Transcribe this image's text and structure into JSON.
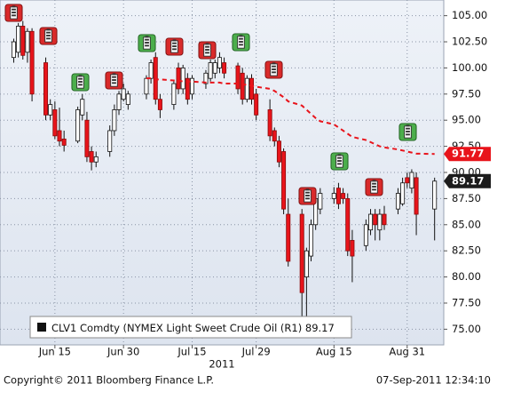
{
  "chart_data": {
    "type": "candlestick",
    "x": [
      "2011-06-06",
      "2011-06-07",
      "2011-06-08",
      "2011-06-09",
      "2011-06-10",
      "2011-06-13",
      "2011-06-14",
      "2011-06-15",
      "2011-06-16",
      "2011-06-17",
      "2011-06-20",
      "2011-06-21",
      "2011-06-22",
      "2011-06-23",
      "2011-06-24",
      "2011-06-27",
      "2011-06-28",
      "2011-06-29",
      "2011-06-30",
      "2011-07-01",
      "2011-07-05",
      "2011-07-06",
      "2011-07-07",
      "2011-07-08",
      "2011-07-11",
      "2011-07-12",
      "2011-07-13",
      "2011-07-14",
      "2011-07-15",
      "2011-07-18",
      "2011-07-19",
      "2011-07-20",
      "2011-07-21",
      "2011-07-22",
      "2011-07-25",
      "2011-07-26",
      "2011-07-27",
      "2011-07-28",
      "2011-07-29",
      "2011-08-01",
      "2011-08-02",
      "2011-08-03",
      "2011-08-04",
      "2011-08-05",
      "2011-08-08",
      "2011-08-09",
      "2011-08-10",
      "2011-08-11",
      "2011-08-12",
      "2011-08-15",
      "2011-08-16",
      "2011-08-17",
      "2011-08-18",
      "2011-08-19",
      "2011-08-22",
      "2011-08-23",
      "2011-08-24",
      "2011-08-25",
      "2011-08-26",
      "2011-08-29",
      "2011-08-30",
      "2011-08-31",
      "2011-09-01",
      "2011-09-02",
      "2011-09-06"
    ],
    "open": [
      101,
      101.5,
      104,
      101.5,
      103.5,
      100.5,
      95.5,
      96,
      94,
      93.2,
      93,
      95.5,
      95,
      92,
      91,
      92,
      94,
      96,
      97,
      96.5,
      97.5,
      99,
      101,
      97,
      96.5,
      100,
      98,
      99,
      97.5,
      98.5,
      99,
      99.5,
      100,
      100.5,
      100.2,
      99.5,
      97,
      99,
      97.5,
      96,
      94,
      93,
      92,
      86,
      86,
      80,
      82,
      85,
      86.5,
      87.5,
      88.5,
      88,
      87.5,
      83.5,
      83,
      84.5,
      86,
      84.5,
      86,
      86.5,
      87,
      89.5,
      88.5,
      89.5,
      86.5
    ],
    "high": [
      102.8,
      104.3,
      104.5,
      103.8,
      103.8,
      101,
      97,
      96.8,
      96.2,
      94,
      96.3,
      97.5,
      95.8,
      92.5,
      92,
      94.5,
      96.5,
      97.8,
      98.5,
      97.8,
      99.3,
      100.8,
      101.5,
      97.5,
      98.8,
      100.5,
      100.3,
      99.5,
      99.3,
      99.8,
      100.8,
      100.8,
      101.5,
      101,
      100.5,
      100,
      99.3,
      99.4,
      98,
      97,
      94.3,
      93.5,
      92.3,
      87.5,
      86.5,
      82.8,
      85.5,
      88,
      88.5,
      88.6,
      89,
      88.5,
      88,
      84.5,
      85.5,
      86.5,
      86.5,
      86.5,
      86.8,
      88.5,
      89.5,
      90,
      90.3,
      90,
      89.5
    ],
    "low": [
      100.5,
      101,
      100.8,
      100.5,
      96.8,
      95,
      95,
      93.2,
      92.5,
      92,
      92.8,
      95,
      91,
      90.2,
      90.5,
      91.5,
      93.5,
      95.5,
      96.8,
      96,
      97,
      98.5,
      96.5,
      95.2,
      96,
      97.5,
      97.5,
      96.5,
      97,
      98,
      98.7,
      99,
      99.5,
      99,
      97.5,
      96.5,
      96.7,
      96.5,
      95,
      93,
      92.5,
      90.5,
      86,
      81,
      76.2,
      76.2,
      81.5,
      84.5,
      86,
      87,
      86.5,
      87,
      82,
      79.5,
      82.5,
      84,
      83.5,
      83.5,
      84.5,
      86,
      86.8,
      88.5,
      88,
      84,
      83.5
    ],
    "close": [
      102.5,
      104,
      101.2,
      103.5,
      97.5,
      95.5,
      96.5,
      93.5,
      93,
      92.6,
      96,
      97,
      91.5,
      91,
      91.5,
      94,
      96,
      97.5,
      98,
      97.5,
      99,
      100.5,
      97,
      96,
      98.5,
      98,
      100,
      97,
      99,
      99.5,
      100.5,
      100.5,
      101,
      99.5,
      98,
      97,
      99,
      97,
      95.5,
      93.5,
      93,
      91,
      86.5,
      81.5,
      78.5,
      82.5,
      85,
      87.5,
      88,
      88,
      87,
      87.5,
      82.5,
      82,
      85,
      86,
      85,
      86,
      85,
      88,
      89,
      89,
      90,
      86,
      89.17
    ],
    "color_up": "#ffffff",
    "color_down": "#e8141b",
    "moving_average": {
      "color": "#e8141b",
      "values": [
        null,
        null,
        null,
        null,
        null,
        null,
        null,
        null,
        null,
        null,
        null,
        null,
        null,
        null,
        null,
        null,
        null,
        null,
        null,
        null,
        99.0,
        99.0,
        98.9,
        98.9,
        98.8,
        98.8,
        98.7,
        98.7,
        98.7,
        98.6,
        98.6,
        98.6,
        98.6,
        98.5,
        98.5,
        98.4,
        98.4,
        98.3,
        98.2,
        98.0,
        97.8,
        97.5,
        97.2,
        96.8,
        96.4,
        96.0,
        95.6,
        95.2,
        94.9,
        94.6,
        94.3,
        94.0,
        93.7,
        93.4,
        93.1,
        92.9,
        92.7,
        92.5,
        92.4,
        92.2,
        92.1,
        92.0,
        91.9,
        91.8,
        91.77
      ]
    },
    "xlim": [
      "2011-06-03",
      "2011-09-08"
    ],
    "xticks": [
      {
        "value": "2011-06-15",
        "label": "Jun 15"
      },
      {
        "value": "2011-06-30",
        "label": "Jun 30"
      },
      {
        "value": "2011-07-15",
        "label": "Jul 15"
      },
      {
        "value": "2011-07-29",
        "label": "Jul 29"
      },
      {
        "value": "2011-08-15",
        "label": "Aug 15"
      },
      {
        "value": "2011-08-31",
        "label": "Aug 31"
      }
    ],
    "x_group_label": "2011",
    "ylim": [
      73.5,
      106.5
    ],
    "yticks": [
      {
        "value": 75,
        "label": "75.00"
      },
      {
        "value": 77.5,
        "label": "77.50"
      },
      {
        "value": 80,
        "label": "80.00"
      },
      {
        "value": 82.5,
        "label": "82.50"
      },
      {
        "value": 85,
        "label": "85.00"
      },
      {
        "value": 87.5,
        "label": "87.50"
      },
      {
        "value": 90,
        "label": "90.00"
      },
      {
        "value": 92.5,
        "label": "92.50"
      },
      {
        "value": 95,
        "label": "95.00"
      },
      {
        "value": 97.5,
        "label": "97.50"
      },
      {
        "value": 100,
        "label": "100.00"
      },
      {
        "value": 102.5,
        "label": "102.50"
      },
      {
        "value": 105,
        "label": "105.00"
      }
    ],
    "grid": true,
    "legend_label": "CLV1 Comdty (NYMEX Light Sweet Crude Oil (R1)",
    "footer_left": "Copyright© 2011 Bloomberg Finance L.P.",
    "footer_right": "07-Sep-2011 12:34:10"
  }
}
